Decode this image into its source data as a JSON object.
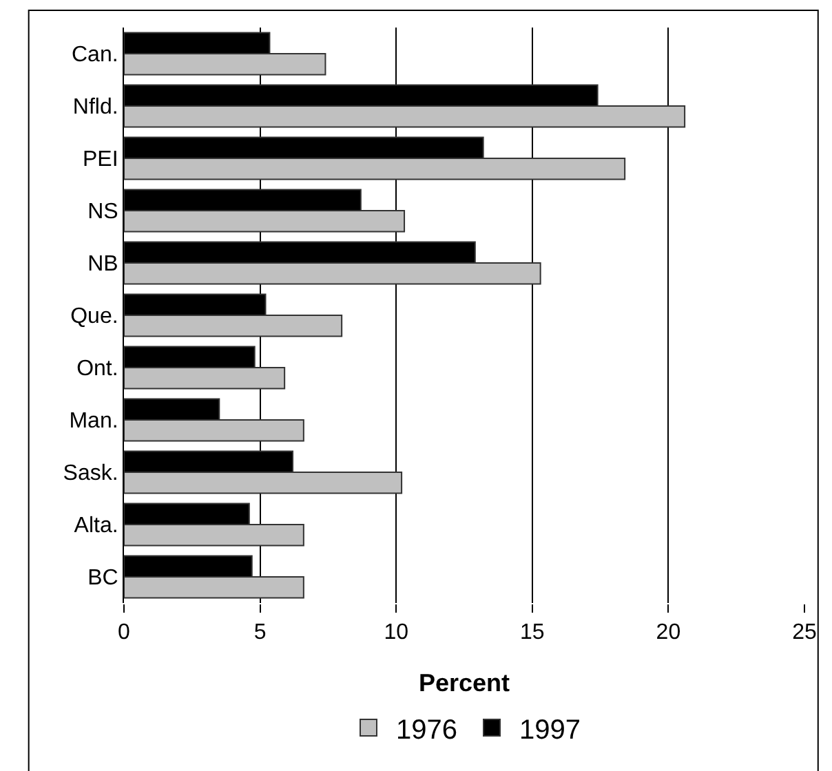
{
  "chart_data": {
    "type": "bar",
    "orientation": "horizontal",
    "xlabel": "Percent",
    "categories": [
      "Can.",
      "Nfld.",
      "PEI",
      "NS",
      "NB",
      "Que.",
      "Ont.",
      "Man.",
      "Sask.",
      "Alta.",
      "BC"
    ],
    "series": [
      {
        "name": "1976",
        "color": "#c0c0c0",
        "values": [
          7.4,
          20.6,
          18.4,
          10.3,
          15.3,
          8.0,
          5.9,
          6.6,
          10.2,
          6.6,
          6.6
        ]
      },
      {
        "name": "1997",
        "color": "#000000",
        "values": [
          5.35,
          17.4,
          13.2,
          8.7,
          12.9,
          5.2,
          4.8,
          3.5,
          6.2,
          4.6,
          4.7
        ]
      }
    ],
    "xlim": [
      0,
      25
    ],
    "xticks": [
      0,
      5,
      10,
      15,
      20,
      25
    ],
    "grid": "x",
    "legend": "bottom"
  }
}
